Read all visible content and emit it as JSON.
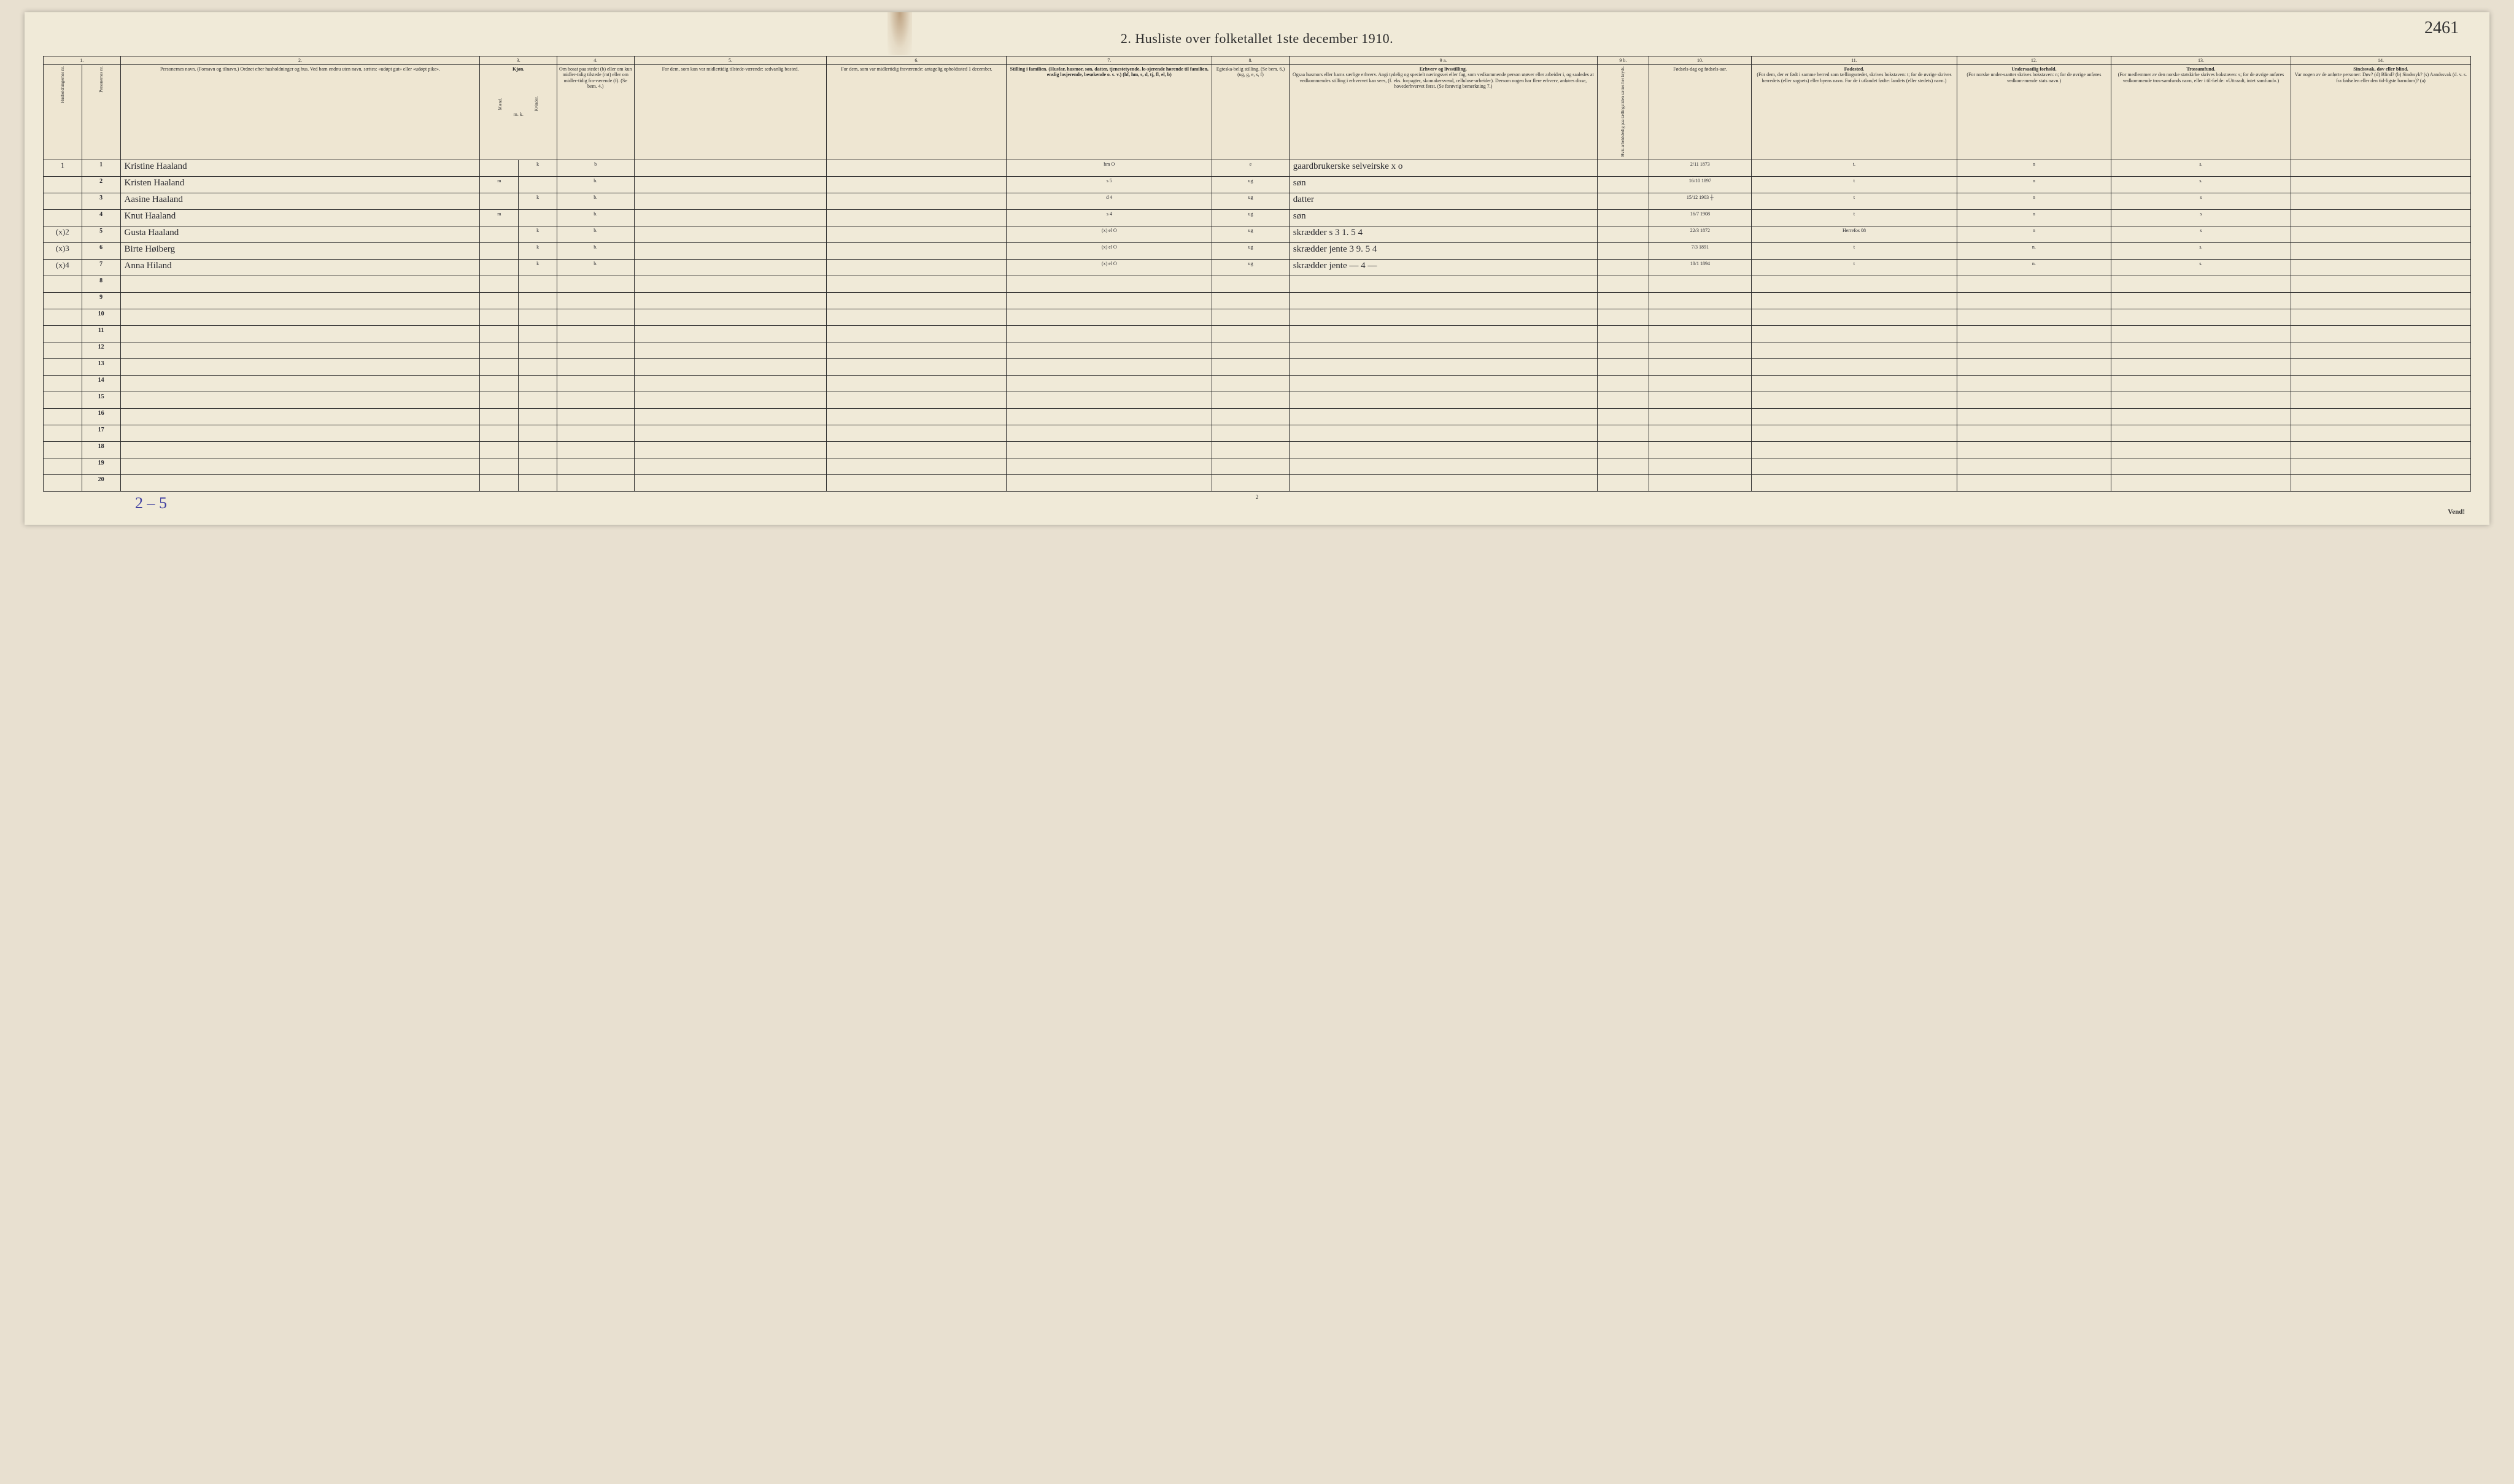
{
  "handwritten_topright": "2461",
  "title": "2.  Husliste over folketallet 1ste december 1910.",
  "column_numbers": [
    "1.",
    "2.",
    "3.",
    "4.",
    "5.",
    "6.",
    "7.",
    "8.",
    "9 a.",
    "9 b.",
    "10.",
    "11.",
    "12.",
    "13.",
    "14."
  ],
  "headers": {
    "col1a": "Husholdningernes nr.",
    "col1b": "Personernes nr.",
    "col2": "Personernes navn.\n(Fornavn og tilnavn.)\nOrdnet efter husholdninger og hus.\nVed barn endnu uten navn, sættes: «udøpt gut» eller «udøpt pike».",
    "col3": "Kjøn.",
    "col3a": "Mænd.",
    "col3b": "Kvinder.",
    "col3sub": "m.  k.",
    "col4": "Om bosat paa stedet (b) eller om kun midler-tidig tilstede (mt) eller om midler-tidig fra-værende (f). (Se bem. 4.)",
    "col5": "For dem, som kun var midlertidig tilstede-værende:\nsedvanlig bosted.",
    "col6": "For dem, som var midlertidig fraværende:\nantagelig opholdssted 1 december.",
    "col7": "Stilling i familien.\n(Husfar, husmor, søn, datter, tjenestetyende, lo-sjerende hørende til familien, enslig losjerende, besøkende o. s. v.)\n(hf, hm, s, d, tj, fl, el, b)",
    "col8": "Egteska-belig stilling.\n(Se bem. 6.)\n(ug, g, e, s, f)",
    "col9a_title": "Erhverv og livsstilling.",
    "col9a": "Ogsaa husmors eller barns særlige erhverv.\nAngi tydelig og specielt næringsvei eller fag, som vedkommende person utøver eller arbeider i, og saaledes at vedkommendes stilling i erhvervet kan sees, (f. eks. forpagter, skomakersvend, cellulose-arbeider). Dersom nogen har flere erhverv, anføres disse, hovederhvervet først.\n(Se forøvrig bemerkning 7.)",
    "col9b": "Hvis arbeidsledig paa tællingstiden sættes her kryds.",
    "col10": "Fødsels-dag og fødsels-aar.",
    "col11_title": "Fødested.",
    "col11": "(For dem, der er født i samme herred som tællingsstedet, skrives bokstaven: t; for de øvrige skrives herredets (eller sognets) eller byens navn. For de i utlandet fødte: landets (eller stedets) navn.)",
    "col12_title": "Undersaatlig forhold.",
    "col12": "(For norske under-saatter skrives bokstaven: n; for de øvrige anføres vedkom-mende stats navn.)",
    "col13_title": "Trossamfund.",
    "col13": "(For medlemmer av den norske statskirke skrives bokstaven: s; for de øvrige anføres vedkommende tros-samfunds navn, eller i til-fælde: «Uttraadt, intet samfund».)",
    "col14_title": "Sindssvak, døv eller blind.",
    "col14": "Var nogen av de anførte personer:\nDøv? (d)\nBlind? (b)\nSindssyk? (s)\nAandssvak (d. v. s. fra fødselen eller den tid-ligste barndom)? (a)"
  },
  "rows": [
    {
      "margin": "1",
      "pn": "1",
      "name": "Kristine   Haaland",
      "m": "",
      "k": "k",
      "b": "b",
      "c5": "",
      "c6": "",
      "c7": "hm   O",
      "c8": "e",
      "c9a": "gaardbrukerske selveirske  x o",
      "c9b": "",
      "c10": "2/11 1873",
      "c11": "t.",
      "c12": "n",
      "c13": "s.",
      "c14": ""
    },
    {
      "margin": "",
      "pn": "2",
      "name": "Kristen   Haaland",
      "m": "m",
      "k": "",
      "b": "b.",
      "c5": "",
      "c6": "",
      "c7": "s      5",
      "c8": "ug",
      "c9a": "søn",
      "c9b": "",
      "c10": "16/10 1897",
      "c11": "t",
      "c12": "n",
      "c13": "s.",
      "c14": ""
    },
    {
      "margin": "",
      "pn": "3",
      "name": "Aasine   Haaland",
      "m": "",
      "k": "k",
      "b": "b.",
      "c5": "",
      "c6": "",
      "c7": "d      4",
      "c8": "ug",
      "c9a": "datter",
      "c9b": "",
      "c10": "15/12 1903 ┼",
      "c11": "t",
      "c12": "n",
      "c13": "s",
      "c14": ""
    },
    {
      "margin": "",
      "pn": "4",
      "name": "Knut     Haaland",
      "m": "m",
      "k": "",
      "b": "b.",
      "c5": "",
      "c6": "",
      "c7": "s      4",
      "c8": "ug",
      "c9a": "søn",
      "c9b": "",
      "c10": "16/7 1908",
      "c11": "t",
      "c12": "n",
      "c13": "s",
      "c14": ""
    },
    {
      "margin": "(x)2",
      "pn": "5",
      "name": "Gusta    Haaland",
      "m": "",
      "k": "k",
      "b": "b.",
      "c5": "",
      "c6": "",
      "c7": "(x) el   O",
      "c8": "ug",
      "c9a": "skrædder s  3 1. 5 4",
      "c9b": "",
      "c10": "22/3 1872",
      "c11": "Herrefos 08",
      "c12": "n",
      "c13": "s",
      "c14": ""
    },
    {
      "margin": "(x)3",
      "pn": "6",
      "name": "Birte    Høiberg",
      "m": "",
      "k": "k",
      "b": "b.",
      "c5": "",
      "c6": "",
      "c7": "(x) el O",
      "c8": "ug",
      "c9a": "skrædder jente 3  9. 5 4",
      "c9b": "",
      "c10": "7/3 1891",
      "c11": "t",
      "c12": "n.",
      "c13": "s.",
      "c14": ""
    },
    {
      "margin": "(x)4",
      "pn": "7",
      "name": "Anna    Hiland",
      "m": "",
      "k": "k",
      "b": "b.",
      "c5": "",
      "c6": "",
      "c7": "(x) el  O",
      "c8": "ug",
      "c9a": "skrædder jente   — 4 —",
      "c9b": "",
      "c10": "18/1 1894",
      "c11": "t",
      "c12": "n.",
      "c13": "s.",
      "c14": ""
    }
  ],
  "empty_row_numbers": [
    "8",
    "9",
    "10",
    "11",
    "12",
    "13",
    "14",
    "15",
    "16",
    "17",
    "18",
    "19",
    "20"
  ],
  "bottom_note": "2 – 5",
  "page_num": "2",
  "vend": "Vend!"
}
